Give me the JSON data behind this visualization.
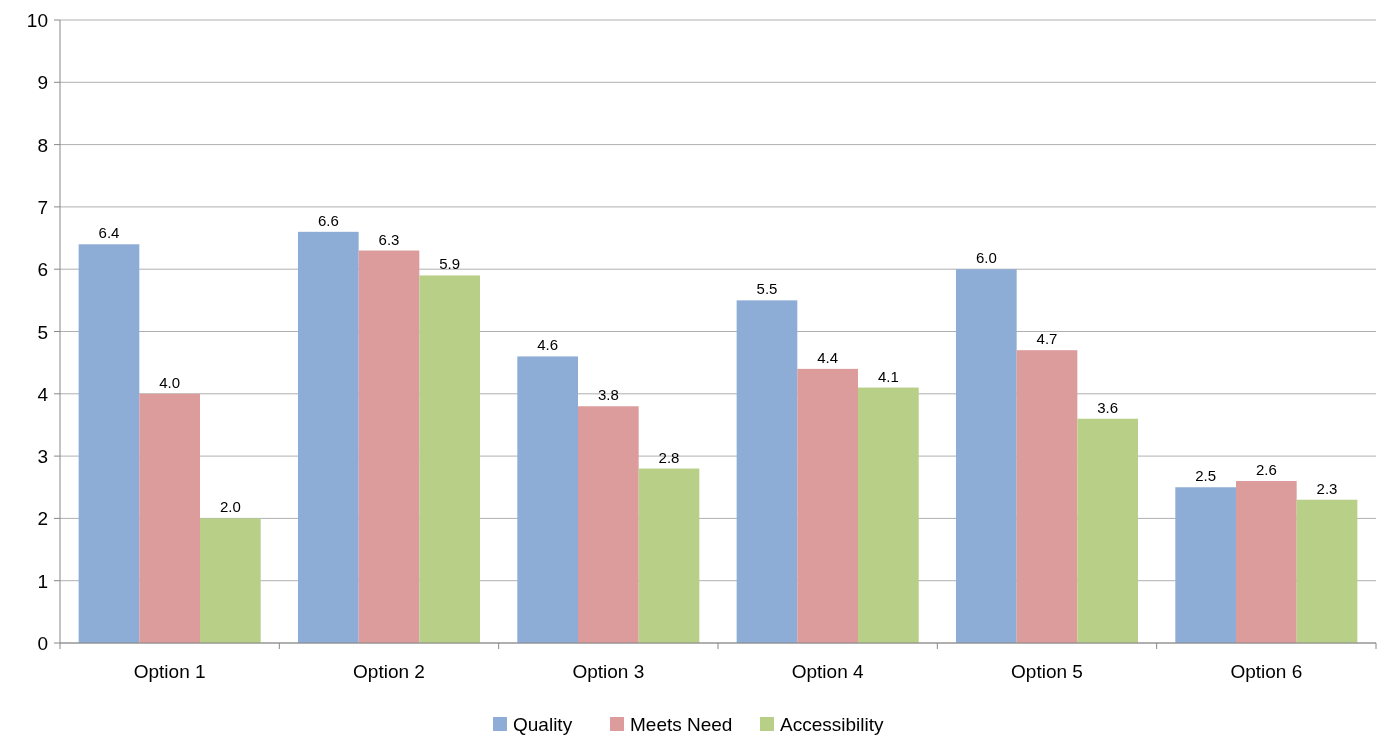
{
  "chart_data": {
    "type": "bar",
    "categories": [
      "Option 1",
      "Option 2",
      "Option 3",
      "Option 4",
      "Option 5",
      "Option 6"
    ],
    "series": [
      {
        "name": "Quality",
        "color": "#8eadd6",
        "values": [
          6.4,
          6.6,
          4.6,
          5.5,
          6.0,
          2.5
        ],
        "value_labels": [
          "6.4",
          "6.6",
          "4.6",
          "5.5",
          "6.0",
          "2.5"
        ]
      },
      {
        "name": "Meets Need",
        "color": "#dc9c9b",
        "values": [
          4.0,
          6.3,
          3.8,
          4.4,
          4.7,
          2.6
        ],
        "value_labels": [
          "4.0",
          "6.3",
          "3.8",
          "4.4",
          "4.7",
          "2.6"
        ]
      },
      {
        "name": "Accessibility",
        "color": "#b8cf88",
        "values": [
          2.0,
          5.9,
          2.8,
          4.1,
          3.6,
          2.3
        ],
        "value_labels": [
          "2.0",
          "5.9",
          "2.8",
          "4.1",
          "3.6",
          "2.3"
        ]
      }
    ],
    "ylim": [
      0,
      10
    ],
    "yticks": [
      0,
      1,
      2,
      3,
      4,
      5,
      6,
      7,
      8,
      9,
      10
    ],
    "grid": "y",
    "legend": "bottom"
  }
}
